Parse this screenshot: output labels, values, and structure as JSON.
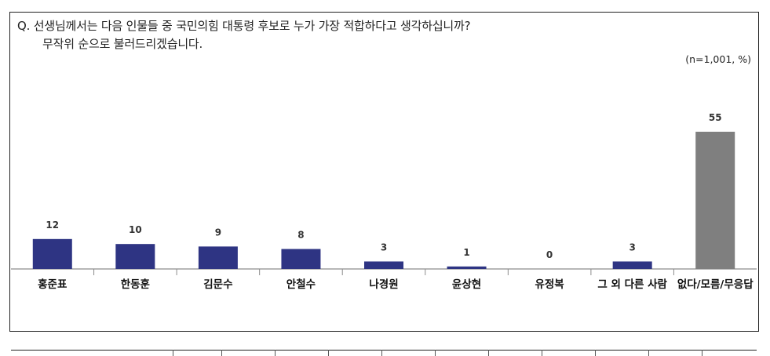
{
  "question": {
    "line1": "Q. 선생님께서는 다음 인물들 중 국민의힘 대통령 후보로 누가 가장 적합하다고 생각하십니까?",
    "line2": "무작위 순으로 불러드리겠습니다."
  },
  "sample_note": "(n=1,001,  %)",
  "colors": {
    "candidate": "#2e3483",
    "no_answer": "#7f7f7f",
    "axis": "#8c8c8c"
  },
  "chart_data": {
    "type": "bar",
    "categories": [
      "홍준표",
      "한동훈",
      "김문수",
      "안철수",
      "나경원",
      "윤상현",
      "유정복",
      "그 외 다른 사람",
      "없다/모름/무응답"
    ],
    "values": [
      12,
      10,
      9,
      8,
      3,
      1,
      0,
      3,
      55
    ],
    "ylim": [
      0,
      55
    ],
    "title": "",
    "xlabel": "",
    "ylabel": "",
    "grid": false,
    "legend": "none"
  }
}
